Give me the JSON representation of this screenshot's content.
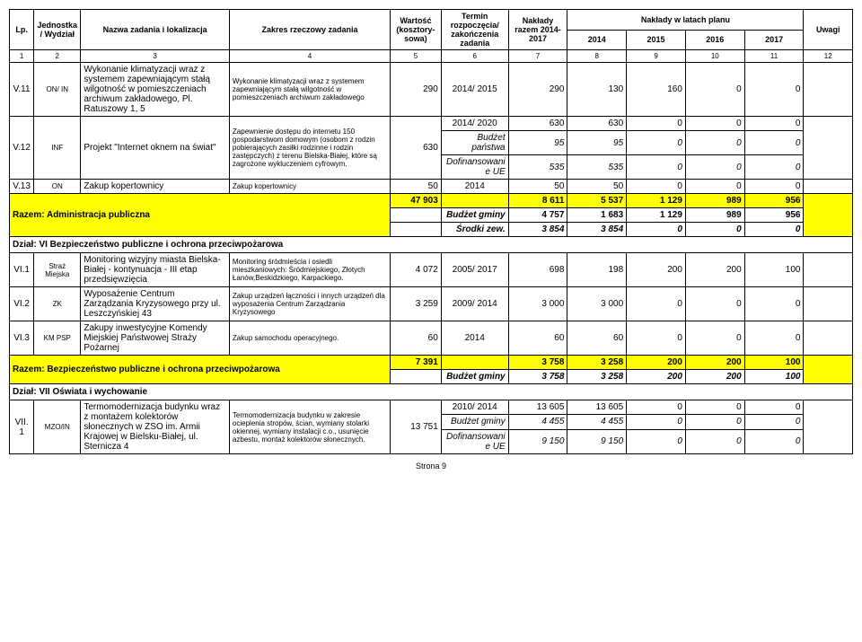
{
  "header": {
    "lp": "Lp.",
    "unit": "Jednostka / Wydział",
    "name": "Nazwa zadania i lokalizacja",
    "scope": "Zakres rzeczowy zadania",
    "cost": "Wartość (kosztory-sowa)",
    "term": "Termin rozpoczęcia/ zakończenia zadania",
    "total": "Nakłady razem 2014-2017",
    "plan": "Nakłady w latach planu",
    "y2014": "2014",
    "y2015": "2015",
    "y2016": "2016",
    "y2017": "2017",
    "notes": "Uwagi"
  },
  "colnums": [
    "1",
    "2",
    "3",
    "4",
    "5",
    "6",
    "7",
    "8",
    "9",
    "10",
    "11",
    "12"
  ],
  "rows": {
    "v11": {
      "lp": "V.11",
      "unit": "ON/ IN",
      "name": "Wykonanie klimatyzacji wraz z systemem zapewniającym stałą wilgotność w pomieszczeniach archiwum zakładowego, Pl. Ratuszowy 1, 5",
      "scope": "Wykonanie klimatyzacji wraz z systemem zapewniającym stałą wilgotność w pomieszczeniach archiwum zakładowego",
      "cost": "290",
      "term": "2014/ 2015",
      "total": "290",
      "y14": "130",
      "y15": "160",
      "y16": "0",
      "y17": "0"
    },
    "v12": {
      "lp": "V.12",
      "unit": "INF",
      "name": "Projekt \"Internet oknem na świat\"",
      "scope": "Zapewnienie dostępu do internetu 150 gospodarstwom domowym (osobom z rodzin pobierających zasiłki rodzinne i rodzin zastępczych)  z terenu Bielska-Białej, które są zagrożone wykluczeniem cyfrowym.",
      "cost": "630",
      "term": "2014/ 2020",
      "main": {
        "tot": "630",
        "y14": "630",
        "y15": "0",
        "y16": "0",
        "y17": "0"
      },
      "bp_label": "Budżet państwa",
      "bp": {
        "tot": "95",
        "y14": "95",
        "y15": "0",
        "y16": "0",
        "y17": "0"
      },
      "ue_label": "Dofinansowanie UE",
      "ue": {
        "tot": "535",
        "y14": "535",
        "y15": "0",
        "y16": "0",
        "y17": "0"
      }
    },
    "v13": {
      "lp": "V.13",
      "unit": "ON",
      "name": "Zakup kopertownicy",
      "scope": "Zakup kopertownicy",
      "cost": "50",
      "term": "2014",
      "total": "50",
      "y14": "50",
      "y15": "0",
      "y16": "0",
      "y17": "0"
    },
    "sumAdmin": {
      "top": {
        "c": "47 903",
        "tot": "8 611",
        "y14": "5 537",
        "y15": "1 129",
        "y16": "989",
        "y17": "956"
      },
      "label": "Razem: Administracja publiczna",
      "bg_label": "Budżet gminy",
      "bg": {
        "tot": "4 757",
        "y14": "1 683",
        "y15": "1 129",
        "y16": "989",
        "y17": "956"
      },
      "sz_label": "Środki zew.",
      "sz": {
        "tot": "3 854",
        "y14": "3 854",
        "y15": "0",
        "y16": "0",
        "y17": "0"
      }
    },
    "sec6": "Dział: VI Bezpieczeństwo publiczne i ochrona przeciwpożarowa",
    "vi1": {
      "lp": "VI.1",
      "unit": "Straż Miejska",
      "name": "Monitoring wizyjny miasta Bielska-Białej - kontynuacja - III etap przedsięwzięcia",
      "scope": "Monitoring śródmieścia i osiedli mieszkaniowych: Śródmiejskiego, Złotych Łanów,Beskidzkiego, Karpackiego.",
      "cost": "4 072",
      "term": "2005/ 2017",
      "total": "698",
      "y14": "198",
      "y15": "200",
      "y16": "200",
      "y17": "100"
    },
    "vi2": {
      "lp": "VI.2",
      "unit": "ZK",
      "name": "Wyposażenie Centrum Zarządzania Kryzysowego przy ul. Leszczyńskiej 43",
      "scope": "Zakup urządzeń łączności i innych urządzeń dla wyposażenia Centrum Zarządzania Kryzysowego",
      "cost": "3 259",
      "term": "2009/ 2014",
      "total": "3 000",
      "y14": "3 000",
      "y15": "0",
      "y16": "0",
      "y17": "0"
    },
    "vi3": {
      "lp": "VI.3",
      "unit": "KM PSP",
      "name": "Zakupy inwestycyjne Komendy Miejskiej Państwowej Straży Pożarnej",
      "scope": "Zakup samochodu operacyjnego.",
      "cost": "60",
      "term": "2014",
      "total": "60",
      "y14": "60",
      "y15": "0",
      "y16": "0",
      "y17": "0"
    },
    "sumBezp": {
      "label": "Razem: Bezpieczeństwo publiczne i ochrona przeciwpożarowa",
      "top": {
        "c": "7 391",
        "tot": "3 758",
        "y14": "3 258",
        "y15": "200",
        "y16": "200",
        "y17": "100"
      },
      "bg_label": "Budżet gminy",
      "bg": {
        "tot": "3 758",
        "y14": "3 258",
        "y15": "200",
        "y16": "200",
        "y17": "100"
      }
    },
    "sec7": "Dział: VII Oświata i wychowanie",
    "vii1": {
      "lp": "VII.1",
      "unit": "MZO/IN",
      "name": "Termomodernizacja budynku wraz z montażem kolektorów słonecznych w ZSO im. Armii Krajowej w Bielsku-Białej, ul. Sternicza 4",
      "scope": "Termomodernizacja  budynku w zakresie ocieplenia stropów, ścian, wymiany stolarki okiennej,  wymiany instalacji c.o., usunięcie azbestu, montaż kolektorów słonecznych.",
      "cost": "13 751",
      "term": "2010/ 2014",
      "main": {
        "tot": "13 605",
        "y14": "13 605",
        "y15": "0",
        "y16": "0",
        "y17": "0"
      },
      "bg_label": "Budżet gminy",
      "bg": {
        "tot": "4 455",
        "y14": "4 455",
        "y15": "0",
        "y16": "0",
        "y17": "0"
      },
      "ue_label": "Dofinansowanie UE",
      "ue": {
        "tot": "9 150",
        "y14": "9 150",
        "y15": "0",
        "y16": "0",
        "y17": "0"
      }
    }
  },
  "footer": "Strona 9",
  "colors": {
    "highlight": "#ffff00"
  }
}
